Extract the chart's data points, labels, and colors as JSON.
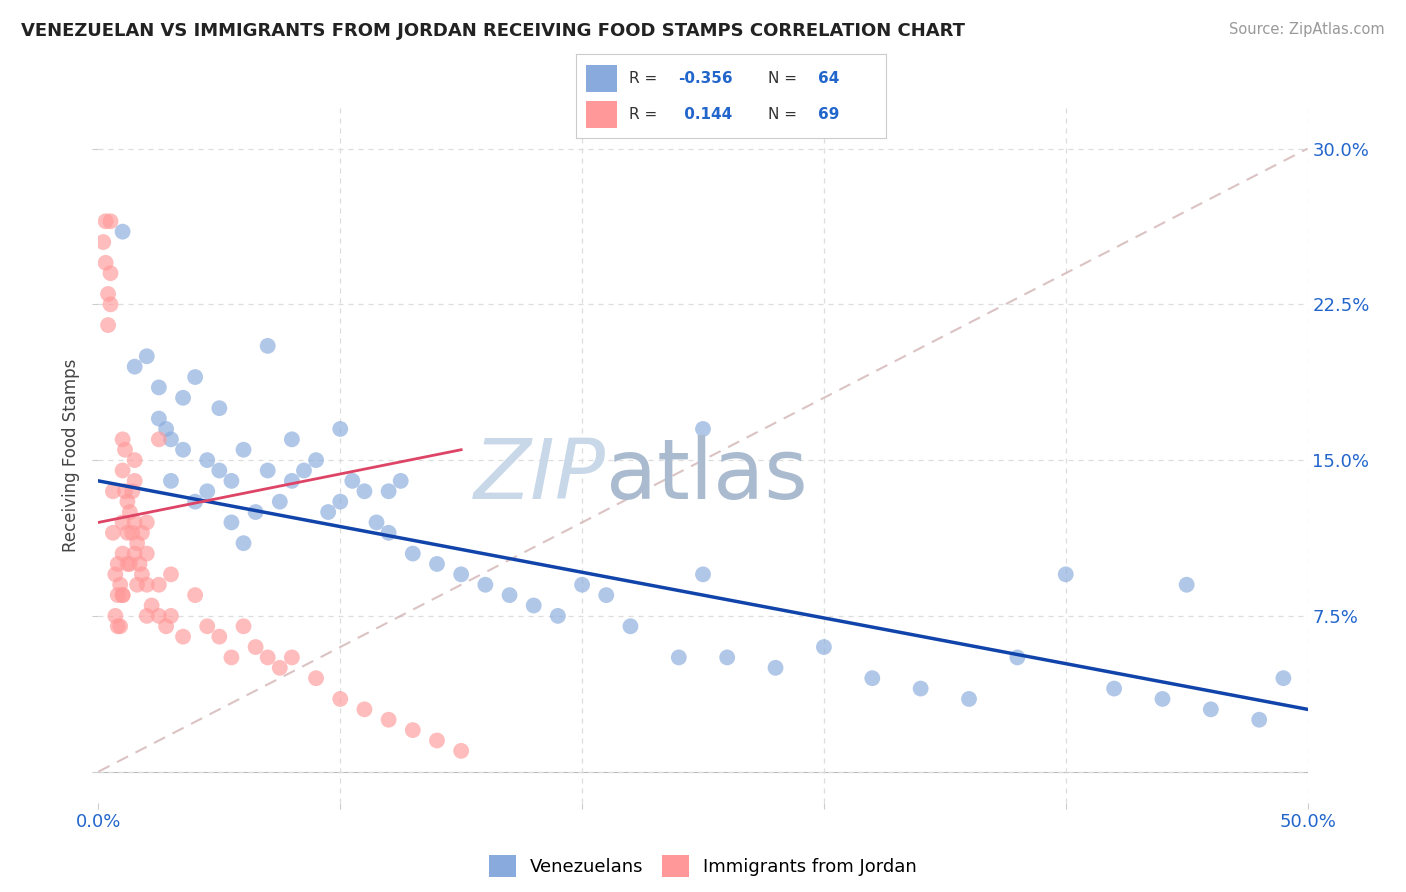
{
  "title": "VENEZUELAN VS IMMIGRANTS FROM JORDAN RECEIVING FOOD STAMPS CORRELATION CHART",
  "source": "Source: ZipAtlas.com",
  "ylabel": "Receiving Food Stamps",
  "xlim": [
    0.0,
    50.0
  ],
  "ylim": [
    -1.5,
    32.0
  ],
  "yticks": [
    0.0,
    7.5,
    15.0,
    22.5,
    30.0
  ],
  "xticks": [
    0.0,
    10.0,
    20.0,
    30.0,
    40.0,
    50.0
  ],
  "venezuelan_R": -0.356,
  "venezuelan_N": 64,
  "jordan_R": 0.144,
  "jordan_N": 69,
  "blue_color": "#88AADD",
  "pink_color": "#FF9999",
  "blue_line_color": "#1144AA",
  "pink_line_color": "#DD4466",
  "watermark_zip": "ZIP",
  "watermark_atlas": "atlas",
  "watermark_color_zip": "#C8D8E8",
  "watermark_color_atlas": "#AABBD0",
  "legend_R_color": "#2266CC",
  "grid_color": "#DDDDDD",
  "ref_line_color": "#CCAAAA",
  "venezuelan_x": [
    1.0,
    1.5,
    2.0,
    2.5,
    2.5,
    2.8,
    3.0,
    3.0,
    3.5,
    3.5,
    4.0,
    4.0,
    4.5,
    4.5,
    5.0,
    5.0,
    5.5,
    5.5,
    6.0,
    6.0,
    6.5,
    7.0,
    7.0,
    7.5,
    8.0,
    8.0,
    8.5,
    9.0,
    9.5,
    10.0,
    10.0,
    10.5,
    11.0,
    11.5,
    12.0,
    12.0,
    12.5,
    13.0,
    14.0,
    15.0,
    16.0,
    17.0,
    18.0,
    19.0,
    20.0,
    21.0,
    22.0,
    24.0,
    25.0,
    26.0,
    28.0,
    30.0,
    32.0,
    34.0,
    36.0,
    38.0,
    40.0,
    42.0,
    44.0,
    46.0,
    48.0,
    49.0,
    25.0,
    45.0
  ],
  "venezuelan_y": [
    26.0,
    19.5,
    20.0,
    17.0,
    18.5,
    16.5,
    14.0,
    16.0,
    15.5,
    18.0,
    13.0,
    19.0,
    13.5,
    15.0,
    14.5,
    17.5,
    12.0,
    14.0,
    11.0,
    15.5,
    12.5,
    14.5,
    20.5,
    13.0,
    14.0,
    16.0,
    14.5,
    15.0,
    12.5,
    13.0,
    16.5,
    14.0,
    13.5,
    12.0,
    11.5,
    13.5,
    14.0,
    10.5,
    10.0,
    9.5,
    9.0,
    8.5,
    8.0,
    7.5,
    9.0,
    8.5,
    7.0,
    5.5,
    9.5,
    5.5,
    5.0,
    6.0,
    4.5,
    4.0,
    3.5,
    5.5,
    9.5,
    4.0,
    3.5,
    3.0,
    2.5,
    4.5,
    16.5,
    9.0
  ],
  "jordan_x": [
    0.2,
    0.3,
    0.3,
    0.4,
    0.4,
    0.5,
    0.5,
    0.5,
    0.6,
    0.7,
    0.7,
    0.8,
    0.8,
    0.9,
    0.9,
    1.0,
    1.0,
    1.0,
    1.0,
    1.1,
    1.1,
    1.2,
    1.2,
    1.3,
    1.3,
    1.4,
    1.4,
    1.5,
    1.5,
    1.5,
    1.6,
    1.6,
    1.7,
    1.8,
    1.8,
    2.0,
    2.0,
    2.0,
    2.0,
    2.5,
    2.5,
    2.8,
    3.0,
    3.5,
    4.0,
    4.5,
    5.0,
    5.5,
    6.0,
    6.5,
    7.0,
    7.5,
    8.0,
    9.0,
    10.0,
    11.0,
    12.0,
    13.0,
    14.0,
    15.0,
    3.0,
    0.6,
    1.0,
    1.0,
    0.8,
    1.2,
    1.5,
    2.2,
    2.5
  ],
  "jordan_y": [
    25.5,
    26.5,
    24.5,
    23.0,
    21.5,
    26.5,
    24.0,
    22.5,
    11.5,
    9.5,
    7.5,
    7.0,
    10.0,
    7.0,
    9.0,
    14.5,
    12.0,
    10.5,
    8.5,
    13.5,
    15.5,
    13.0,
    11.5,
    12.5,
    10.0,
    11.5,
    13.5,
    10.5,
    12.0,
    14.0,
    9.0,
    11.0,
    10.0,
    9.5,
    11.5,
    7.5,
    9.0,
    10.5,
    12.0,
    7.5,
    9.0,
    7.0,
    9.5,
    6.5,
    8.5,
    7.0,
    6.5,
    5.5,
    7.0,
    6.0,
    5.5,
    5.0,
    5.5,
    4.5,
    3.5,
    3.0,
    2.5,
    2.0,
    1.5,
    1.0,
    7.5,
    13.5,
    16.0,
    8.5,
    8.5,
    10.0,
    15.0,
    8.0,
    16.0
  ]
}
